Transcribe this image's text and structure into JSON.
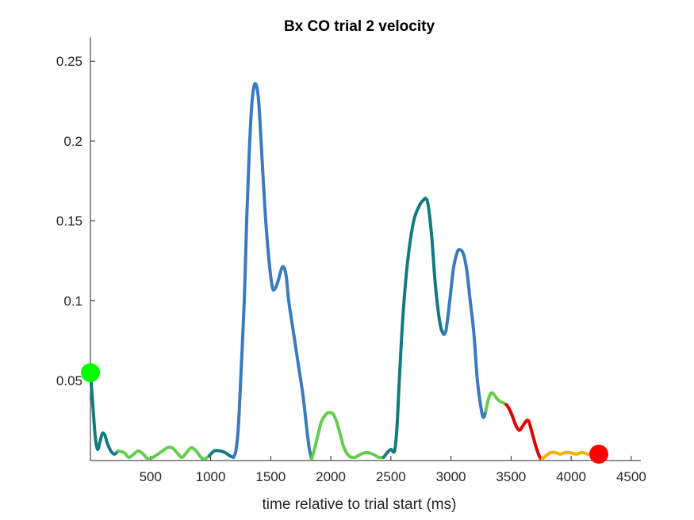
{
  "chart_data": {
    "type": "line",
    "title": "Bx  CO trial 2 velocity",
    "xlabel": "time relative to trial start (ms)",
    "ylabel": "",
    "xlim": [
      0,
      4580
    ],
    "ylim": [
      0,
      0.265
    ],
    "xticks": [
      500,
      1000,
      1500,
      2000,
      2500,
      3000,
      3500,
      4000,
      4500
    ],
    "xtick_labels": [
      "500",
      "1000",
      "1500",
      "2000",
      "2500",
      "3000",
      "3500",
      "4000",
      "4500"
    ],
    "yticks": [
      0.05,
      0.1,
      0.15,
      0.2,
      0.25
    ],
    "ytick_labels": [
      "0.05",
      "0.1",
      "0.15",
      "0.2",
      "0.25"
    ],
    "grid": false,
    "segments": [
      {
        "color": "#137a7f",
        "points": [
          [
            0,
            0.055
          ],
          [
            20,
            0.035
          ],
          [
            40,
            0.015
          ],
          [
            60,
            0.007
          ],
          [
            80,
            0.012
          ],
          [
            100,
            0.017
          ],
          [
            120,
            0.016
          ],
          [
            140,
            0.011
          ],
          [
            170,
            0.006
          ],
          [
            200,
            0.004
          ],
          [
            230,
            0.006
          ]
        ]
      },
      {
        "color": "#66cc4d",
        "points": [
          [
            230,
            0.006
          ],
          [
            280,
            0.005
          ],
          [
            320,
            0.002
          ],
          [
            360,
            0.004
          ],
          [
            400,
            0.006
          ],
          [
            440,
            0.004
          ],
          [
            480,
            0.001
          ],
          [
            520,
            0.002
          ],
          [
            560,
            0.004
          ],
          [
            600,
            0.006
          ],
          [
            640,
            0.008
          ],
          [
            680,
            0.008
          ],
          [
            720,
            0.005
          ],
          [
            760,
            0.002
          ],
          [
            800,
            0.005
          ],
          [
            840,
            0.008
          ],
          [
            880,
            0.006
          ],
          [
            920,
            0.002
          ],
          [
            950,
            0.001
          ],
          [
            990,
            0.003
          ]
        ]
      },
      {
        "color": "#137a7f",
        "points": [
          [
            990,
            0.003
          ],
          [
            1030,
            0.006
          ],
          [
            1080,
            0.006
          ],
          [
            1120,
            0.005
          ],
          [
            1160,
            0.003
          ],
          [
            1190,
            0.002
          ]
        ]
      },
      {
        "color": "#3a7abf",
        "points": [
          [
            1190,
            0.002
          ],
          [
            1210,
            0.006
          ],
          [
            1230,
            0.02
          ],
          [
            1250,
            0.05
          ],
          [
            1280,
            0.1
          ],
          [
            1300,
            0.15
          ],
          [
            1320,
            0.19
          ],
          [
            1340,
            0.22
          ],
          [
            1360,
            0.234
          ],
          [
            1380,
            0.235
          ],
          [
            1400,
            0.225
          ],
          [
            1420,
            0.2
          ],
          [
            1450,
            0.16
          ],
          [
            1480,
            0.13
          ],
          [
            1510,
            0.11
          ],
          [
            1530,
            0.107
          ],
          [
            1560,
            0.112
          ],
          [
            1590,
            0.12
          ],
          [
            1610,
            0.121
          ],
          [
            1630,
            0.115
          ],
          [
            1650,
            0.1
          ],
          [
            1690,
            0.08
          ],
          [
            1730,
            0.06
          ],
          [
            1770,
            0.04
          ],
          [
            1800,
            0.02
          ],
          [
            1820,
            0.008
          ],
          [
            1840,
            0.001
          ]
        ]
      },
      {
        "color": "#66cc4d",
        "points": [
          [
            1840,
            0.001
          ],
          [
            1860,
            0.006
          ],
          [
            1890,
            0.015
          ],
          [
            1920,
            0.024
          ],
          [
            1960,
            0.029
          ],
          [
            1990,
            0.03
          ],
          [
            2020,
            0.029
          ],
          [
            2050,
            0.024
          ],
          [
            2080,
            0.016
          ],
          [
            2110,
            0.008
          ],
          [
            2150,
            0.003
          ],
          [
            2200,
            0.002
          ],
          [
            2250,
            0.004
          ],
          [
            2300,
            0.005
          ],
          [
            2350,
            0.004
          ],
          [
            2400,
            0.002
          ],
          [
            2440,
            0.002
          ]
        ]
      },
      {
        "color": "#137a7f",
        "points": [
          [
            2440,
            0.002
          ],
          [
            2470,
            0.005
          ],
          [
            2500,
            0.007
          ],
          [
            2530,
            0.006
          ],
          [
            2550,
            0.02
          ],
          [
            2570,
            0.05
          ],
          [
            2600,
            0.09
          ],
          [
            2640,
            0.125
          ],
          [
            2690,
            0.15
          ],
          [
            2740,
            0.16
          ],
          [
            2770,
            0.163
          ],
          [
            2790,
            0.164
          ],
          [
            2810,
            0.16
          ],
          [
            2840,
            0.14
          ],
          [
            2870,
            0.11
          ],
          [
            2900,
            0.09
          ],
          [
            2920,
            0.082
          ],
          [
            2940,
            0.079
          ]
        ]
      },
      {
        "color": "#3a7abf",
        "points": [
          [
            2940,
            0.079
          ],
          [
            2960,
            0.082
          ],
          [
            2990,
            0.1
          ],
          [
            3020,
            0.12
          ],
          [
            3050,
            0.13
          ],
          [
            3070,
            0.132
          ],
          [
            3100,
            0.13
          ],
          [
            3130,
            0.12
          ],
          [
            3160,
            0.1
          ],
          [
            3190,
            0.08
          ],
          [
            3220,
            0.05
          ],
          [
            3250,
            0.033
          ],
          [
            3270,
            0.027
          ],
          [
            3290,
            0.031
          ]
        ]
      },
      {
        "color": "#66cc4d",
        "points": [
          [
            3290,
            0.031
          ],
          [
            3310,
            0.038
          ],
          [
            3330,
            0.042
          ],
          [
            3350,
            0.042
          ],
          [
            3380,
            0.039
          ],
          [
            3410,
            0.037
          ],
          [
            3440,
            0.036
          ],
          [
            3460,
            0.035
          ]
        ]
      },
      {
        "color": "#dd0000",
        "points": [
          [
            3460,
            0.035
          ],
          [
            3480,
            0.033
          ],
          [
            3510,
            0.028
          ],
          [
            3540,
            0.022
          ],
          [
            3570,
            0.019
          ],
          [
            3600,
            0.022
          ],
          [
            3630,
            0.025
          ],
          [
            3650,
            0.024
          ],
          [
            3680,
            0.016
          ],
          [
            3710,
            0.008
          ],
          [
            3740,
            0.002
          ],
          [
            3760,
            0.001
          ]
        ]
      },
      {
        "color": "#f2b100",
        "points": [
          [
            3760,
            0.001
          ],
          [
            3790,
            0.003
          ],
          [
            3830,
            0.005
          ],
          [
            3870,
            0.005
          ],
          [
            3910,
            0.004
          ],
          [
            3950,
            0.005
          ],
          [
            3990,
            0.005
          ],
          [
            4040,
            0.004
          ],
          [
            4090,
            0.005
          ],
          [
            4140,
            0.004
          ],
          [
            4200,
            0.004
          ],
          [
            4230,
            0.004
          ]
        ]
      }
    ],
    "markers": [
      {
        "x": 0,
        "y": 0.055,
        "color": "#00ff00"
      },
      {
        "x": 4230,
        "y": 0.004,
        "color": "#ff0000"
      }
    ]
  }
}
